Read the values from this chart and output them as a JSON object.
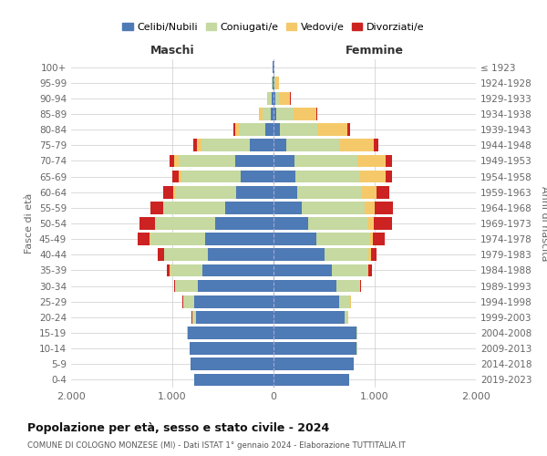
{
  "age_groups": [
    "0-4",
    "5-9",
    "10-14",
    "15-19",
    "20-24",
    "25-29",
    "30-34",
    "35-39",
    "40-44",
    "45-49",
    "50-54",
    "55-59",
    "60-64",
    "65-69",
    "70-74",
    "75-79",
    "80-84",
    "85-89",
    "90-94",
    "95-99",
    "100+"
  ],
  "birth_years": [
    "2019-2023",
    "2014-2018",
    "2009-2013",
    "2004-2008",
    "1999-2003",
    "1994-1998",
    "1989-1993",
    "1984-1988",
    "1979-1983",
    "1974-1978",
    "1969-1973",
    "1964-1968",
    "1959-1963",
    "1954-1958",
    "1949-1953",
    "1944-1948",
    "1939-1943",
    "1934-1938",
    "1929-1933",
    "1924-1928",
    "≤ 1923"
  ],
  "maschi": {
    "celibi": [
      780,
      820,
      830,
      850,
      770,
      780,
      750,
      700,
      650,
      680,
      580,
      480,
      370,
      320,
      380,
      230,
      80,
      30,
      20,
      10,
      5
    ],
    "coniugati": [
      0,
      0,
      0,
      10,
      30,
      110,
      220,
      320,
      430,
      540,
      580,
      600,
      600,
      590,
      560,
      480,
      250,
      80,
      30,
      8,
      2
    ],
    "vedovi": [
      0,
      0,
      0,
      0,
      5,
      5,
      5,
      5,
      5,
      5,
      10,
      10,
      20,
      30,
      40,
      50,
      50,
      30,
      15,
      2,
      0
    ],
    "divorziati": [
      0,
      0,
      0,
      0,
      5,
      5,
      10,
      30,
      60,
      120,
      150,
      130,
      100,
      60,
      50,
      30,
      20,
      5,
      0,
      0,
      0
    ]
  },
  "femmine": {
    "nubili": [
      750,
      790,
      820,
      820,
      700,
      650,
      620,
      580,
      500,
      420,
      340,
      280,
      230,
      220,
      210,
      130,
      60,
      25,
      15,
      10,
      5
    ],
    "coniugate": [
      0,
      5,
      5,
      10,
      30,
      110,
      230,
      350,
      440,
      530,
      590,
      620,
      640,
      640,
      620,
      530,
      370,
      170,
      50,
      12,
      2
    ],
    "vedove": [
      0,
      0,
      0,
      0,
      5,
      5,
      5,
      10,
      20,
      30,
      60,
      100,
      150,
      250,
      280,
      330,
      300,
      230,
      100,
      30,
      5
    ],
    "divorziate": [
      0,
      0,
      0,
      0,
      5,
      5,
      10,
      30,
      60,
      120,
      180,
      180,
      120,
      60,
      60,
      50,
      30,
      10,
      5,
      0,
      0
    ]
  },
  "colors": {
    "celibi": "#4e7ab5",
    "coniugati": "#c5d9a0",
    "vedovi": "#f5c96a",
    "divorziati": "#cc2222"
  },
  "legend_labels": [
    "Celibi/Nubili",
    "Coniugati/e",
    "Vedovi/e",
    "Divorziati/e"
  ],
  "title": "Popolazione per età, sesso e stato civile - 2024",
  "subtitle": "COMUNE DI COLOGNO MONZESE (MI) - Dati ISTAT 1° gennaio 2024 - Elaborazione TUTTITALIA.IT",
  "xlabel_left": "Maschi",
  "xlabel_right": "Femmine",
  "ylabel_left": "Fasce di età",
  "ylabel_right": "Anni di nascita",
  "xlim": 2000,
  "xtick_vals": [
    -2000,
    -1000,
    0,
    1000,
    2000
  ],
  "xtick_labels": [
    "2.000",
    "1.000",
    "0",
    "1.000",
    "2.000"
  ],
  "bg_color": "#ffffff",
  "grid_color": "#cccccc"
}
